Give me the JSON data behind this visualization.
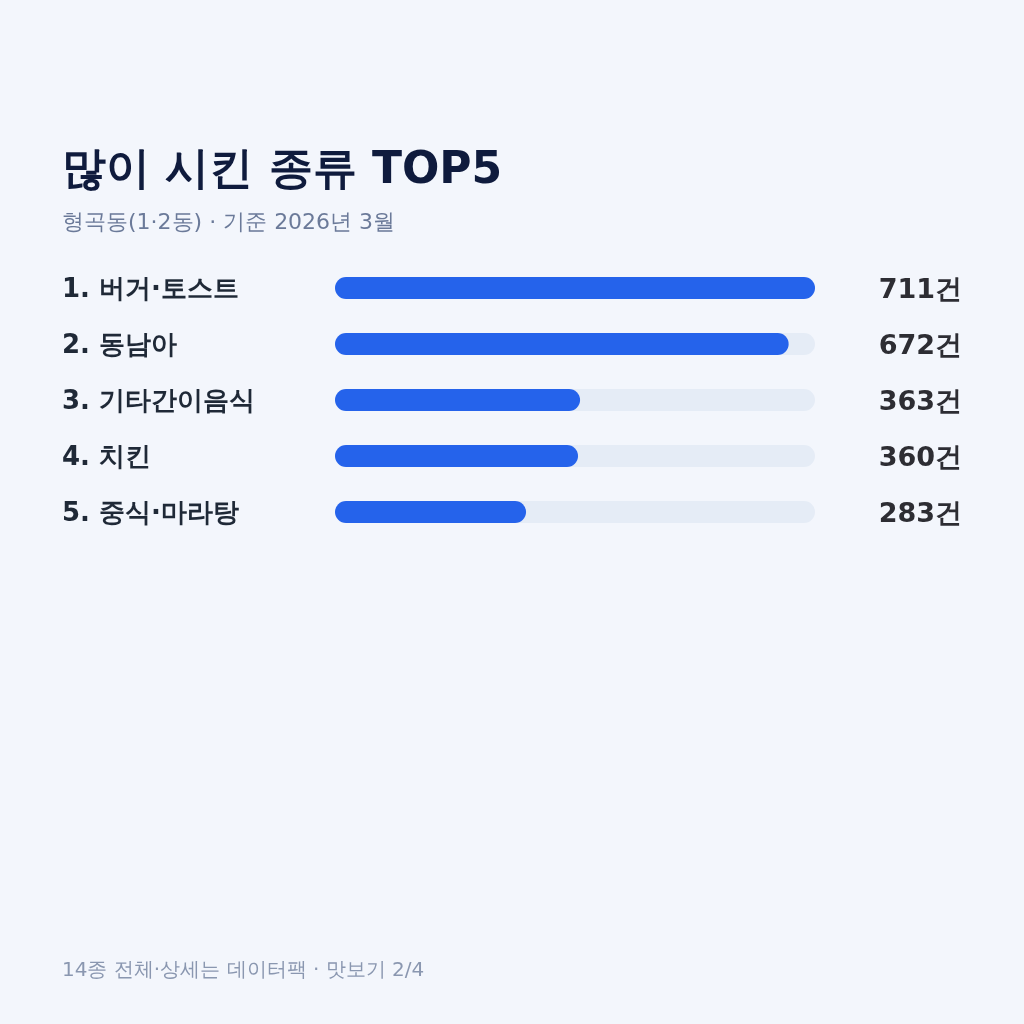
{
  "chart_data": {
    "type": "bar",
    "orientation": "horizontal",
    "title": "많이 시킨 종류 TOP5",
    "subtitle": "형곡동(1·2동) · 기준 2026년 3월",
    "categories": [
      "1. 버거·토스트",
      "2. 동남아",
      "3. 기타간이음식",
      "4. 치킨",
      "5. 중식·마라탕"
    ],
    "values": [
      711,
      672,
      363,
      360,
      283
    ],
    "color": "#2563eb",
    "value_labels": [
      "711건",
      "672건",
      "363건",
      "360건",
      "283건"
    ],
    "annotations": [
      "14종 전체·상세는 데이터팩 · 맛보기 2/4"
    ]
  }
}
